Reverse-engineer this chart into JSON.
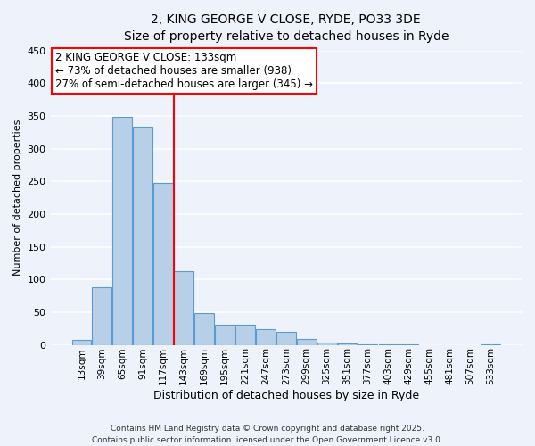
{
  "title_line1": "2, KING GEORGE V CLOSE, RYDE, PO33 3DE",
  "title_line2": "Size of property relative to detached houses in Ryde",
  "xlabel": "Distribution of detached houses by size in Ryde",
  "ylabel": "Number of detached properties",
  "categories": [
    "13sqm",
    "39sqm",
    "65sqm",
    "91sqm",
    "117sqm",
    "143sqm",
    "169sqm",
    "195sqm",
    "221sqm",
    "247sqm",
    "273sqm",
    "299sqm",
    "325sqm",
    "351sqm",
    "377sqm",
    "403sqm",
    "429sqm",
    "455sqm",
    "481sqm",
    "507sqm",
    "533sqm"
  ],
  "values": [
    7,
    88,
    348,
    333,
    247,
    112,
    49,
    31,
    31,
    24,
    20,
    9,
    4,
    2,
    1,
    1,
    1,
    0,
    0,
    0,
    1
  ],
  "bar_color": "#b8cfe8",
  "bar_edge_color": "#5b9bd5",
  "vline_index": 5,
  "vline_color": "red",
  "annotation_title": "2 KING GEORGE V CLOSE: 133sqm",
  "annotation_line1": "← 73% of detached houses are smaller (938)",
  "annotation_line2": "27% of semi-detached houses are larger (345) →",
  "annotation_box_color": "white",
  "annotation_box_edge_color": "red",
  "ylim": [
    0,
    450
  ],
  "yticks": [
    0,
    50,
    100,
    150,
    200,
    250,
    300,
    350,
    400,
    450
  ],
  "footer_line1": "Contains HM Land Registry data © Crown copyright and database right 2025.",
  "footer_line2": "Contains public sector information licensed under the Open Government Licence v3.0.",
  "background_color": "#eef2fa",
  "grid_color": "#ffffff",
  "fig_width": 6.0,
  "fig_height": 5.0,
  "title_fontsize": 10,
  "subtitle_fontsize": 9,
  "ylabel_fontsize": 8,
  "xlabel_fontsize": 9,
  "tick_fontsize": 7.5,
  "annotation_fontsize": 8.5,
  "footer_fontsize": 6.5
}
